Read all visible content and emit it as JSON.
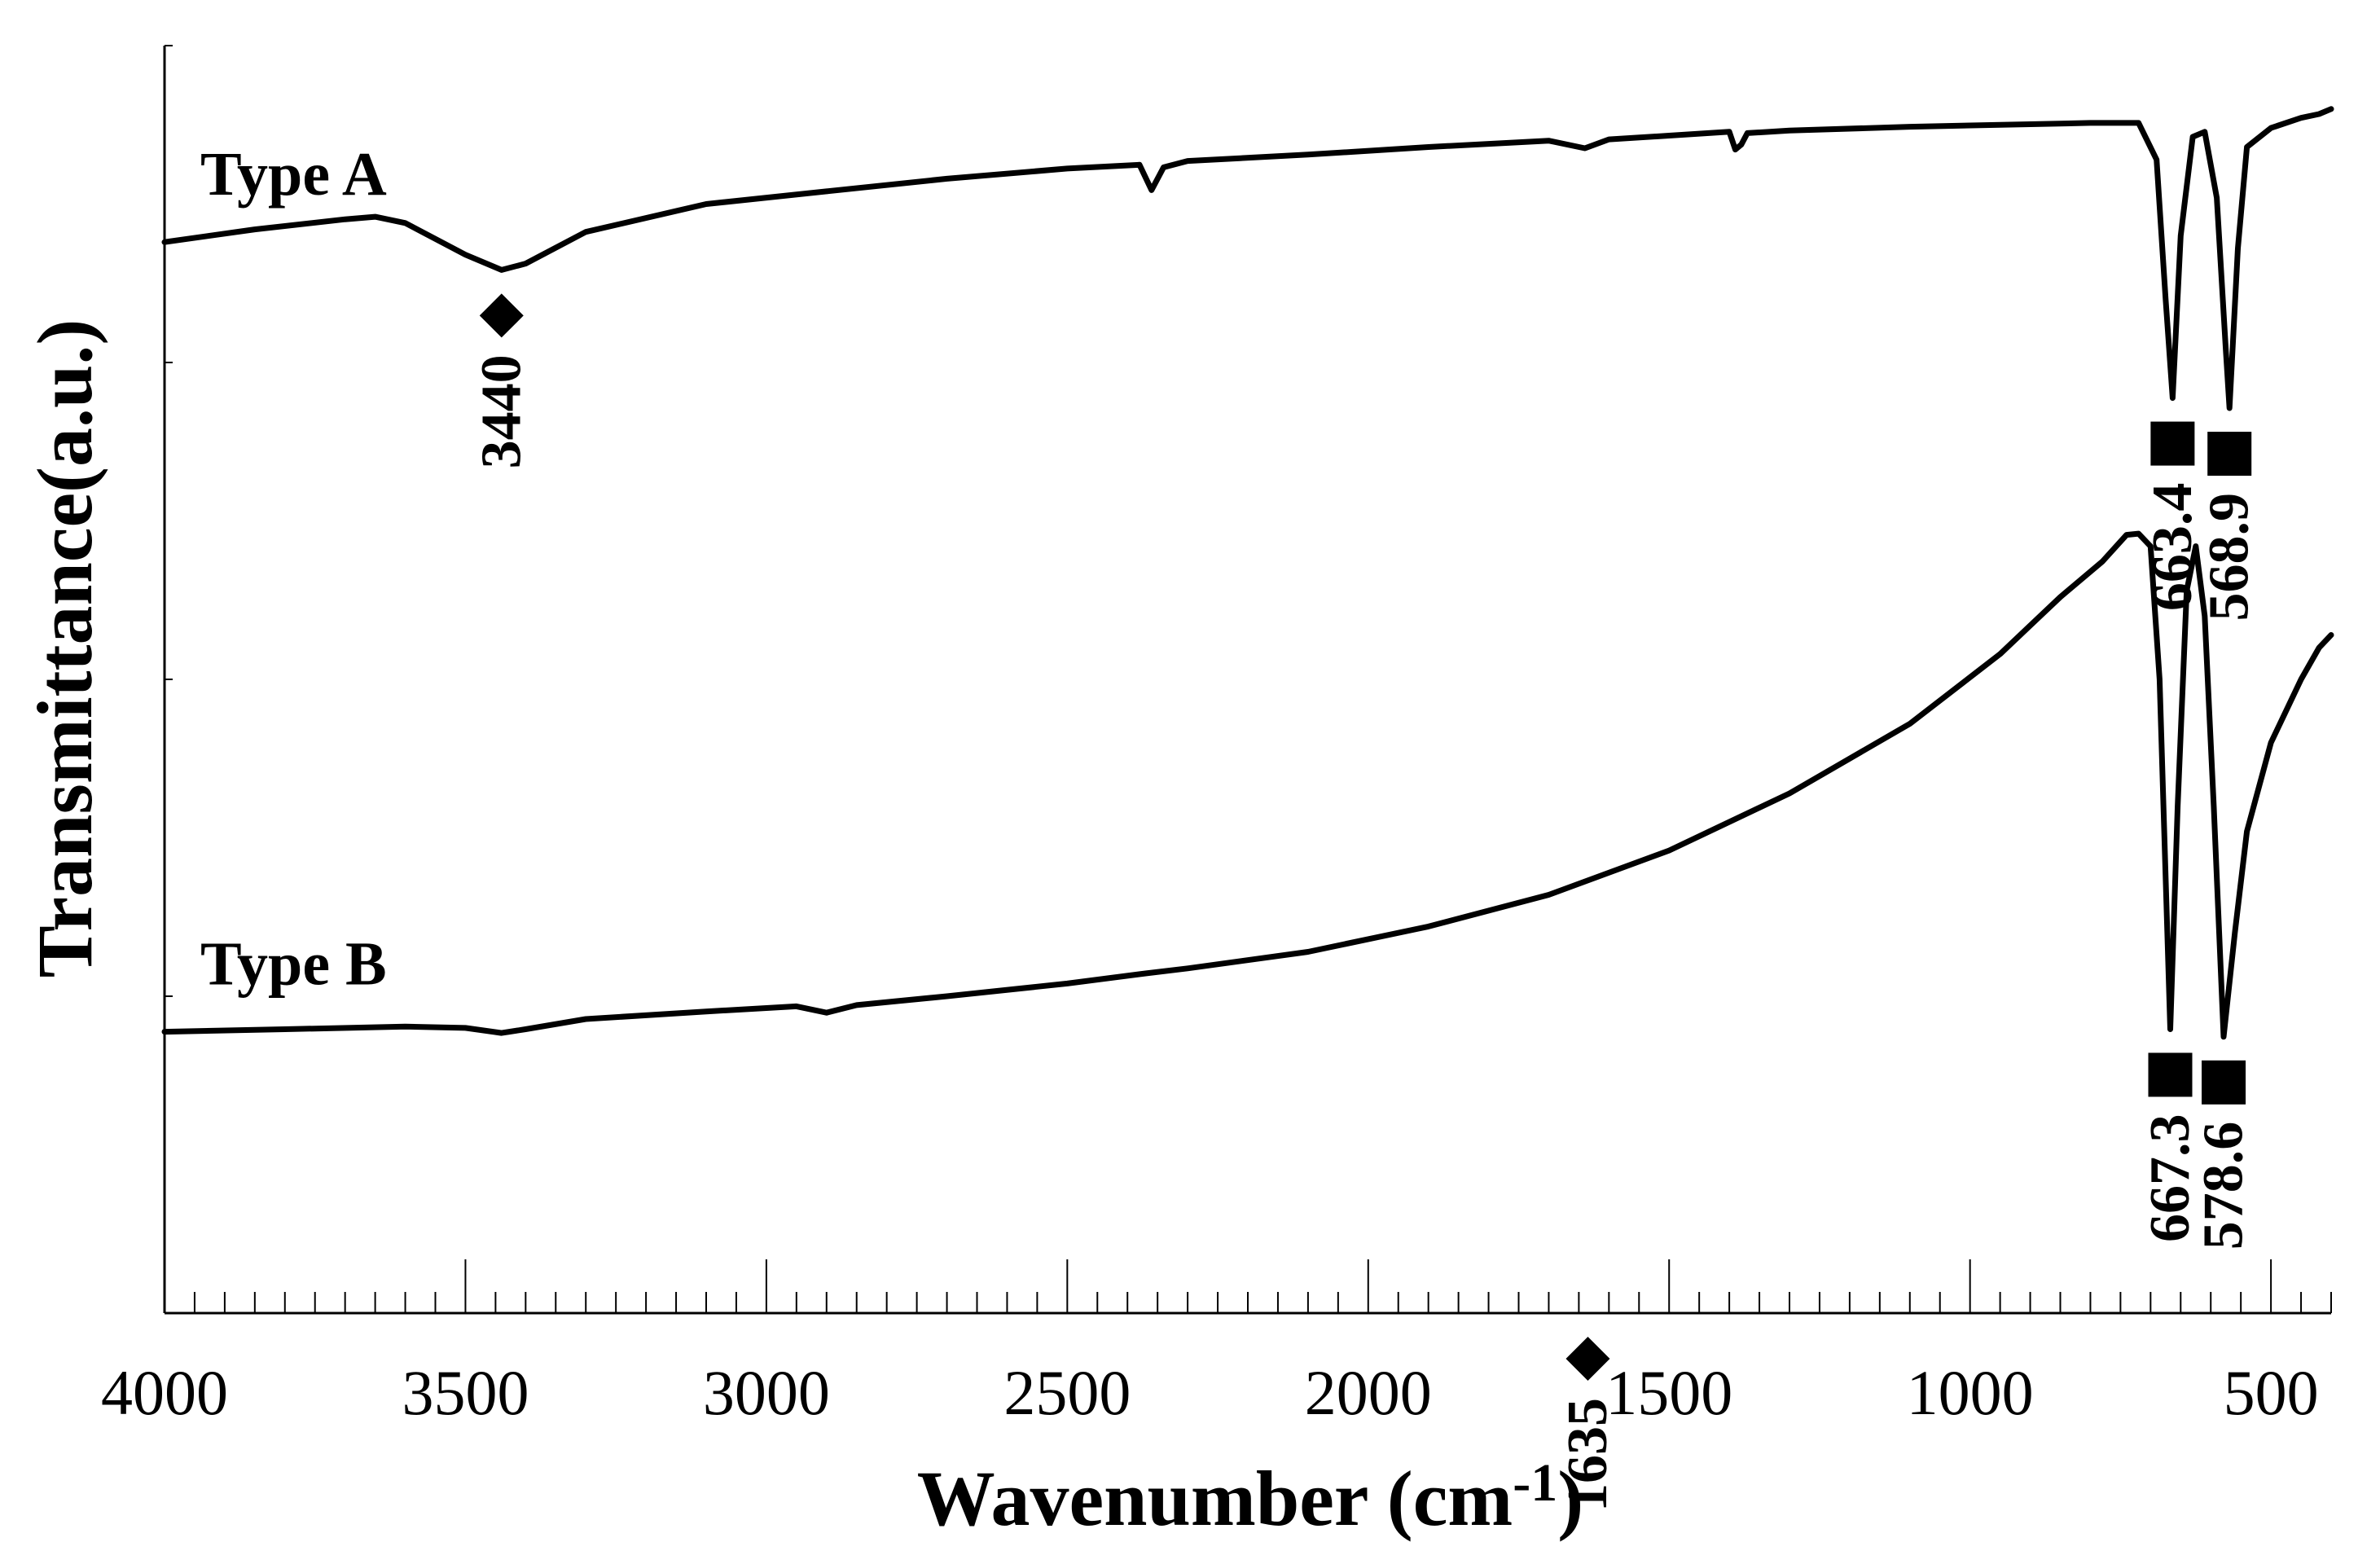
{
  "chart_data": {
    "type": "line",
    "title": "",
    "xlabel": "Wavenumber (cm",
    "xlabel_superscript": "-1",
    "xlabel_close": ")",
    "ylabel": "Transmittance(a.u.)",
    "xlim": [
      4000,
      400
    ],
    "ylim": [
      0,
      100
    ],
    "x_reversed": true,
    "grid": false,
    "xticks": [
      4000,
      3500,
      3000,
      2500,
      2000,
      1500,
      1000,
      500
    ],
    "xtick_labels": [
      "4000",
      "3500",
      "3000",
      "2500",
      "2000",
      "1500",
      "1000",
      "500"
    ],
    "yticks": [
      0,
      25,
      50,
      75,
      100
    ],
    "series": [
      {
        "name": "Type A",
        "label": "Type A",
        "x": [
          4000,
          3850,
          3700,
          3650,
          3600,
          3500,
          3440,
          3400,
          3300,
          3100,
          2900,
          2700,
          2500,
          2380,
          2360,
          2340,
          2300,
          2100,
          1900,
          1700,
          1640,
          1600,
          1500,
          1400,
          1390,
          1380,
          1370,
          1300,
          1100,
          900,
          800,
          720,
          690,
          675,
          663.4,
          650,
          630,
          610,
          590,
          575,
          568.9,
          555,
          540,
          500,
          450,
          420,
          400
        ],
        "values": [
          84.5,
          85.5,
          86.3,
          86.5,
          86,
          83.5,
          82.3,
          82.8,
          85.3,
          87.5,
          88.5,
          89.5,
          90.3,
          90.6,
          88.6,
          90.4,
          90.9,
          91.4,
          92,
          92.5,
          91.9,
          92.6,
          92.9,
          93.2,
          91.8,
          92.2,
          93.1,
          93.3,
          93.6,
          93.8,
          93.9,
          93.9,
          91,
          80,
          72.2,
          85,
          92.8,
          93.2,
          88,
          76,
          71.4,
          84,
          92,
          93.5,
          94.3,
          94.6,
          95
        ]
      },
      {
        "name": "Type B",
        "label": "Type B",
        "x": [
          4000,
          3800,
          3600,
          3500,
          3440,
          3400,
          3300,
          3100,
          2950,
          2900,
          2850,
          2700,
          2500,
          2370,
          2300,
          2100,
          1900,
          1700,
          1500,
          1300,
          1100,
          950,
          850,
          780,
          740,
          720,
          700,
          685,
          667.3,
          655,
          640,
          625,
          610,
          595,
          578.6,
          560,
          540,
          500,
          450,
          420,
          400
        ],
        "values": [
          22.2,
          22.4,
          22.6,
          22.5,
          22.1,
          22.4,
          23.2,
          23.8,
          24.2,
          23.7,
          24.3,
          25,
          26,
          26.8,
          27.2,
          28.5,
          30.5,
          33,
          36.5,
          41,
          46.5,
          52,
          56.5,
          59.3,
          61.4,
          61.5,
          60.5,
          50,
          22.4,
          40,
          57,
          60.5,
          55,
          40,
          21.8,
          30,
          38,
          45,
          50,
          52.5,
          53.5
        ]
      }
    ],
    "annotations": [
      {
        "series": "Type A",
        "x": 3440,
        "label": "3440",
        "marker": "diamond"
      },
      {
        "series": "Type A",
        "x": 1635,
        "label": "1635",
        "marker": "diamond"
      },
      {
        "series": "Type A",
        "x": 663.4,
        "label": "663.4",
        "marker": "square"
      },
      {
        "series": "Type A",
        "x": 568.9,
        "label": "568.9",
        "marker": "square"
      },
      {
        "series": "Type B",
        "x": 667.3,
        "label": "667.3",
        "marker": "square"
      },
      {
        "series": "Type B",
        "x": 578.6,
        "label": "578.6",
        "marker": "square"
      }
    ]
  }
}
